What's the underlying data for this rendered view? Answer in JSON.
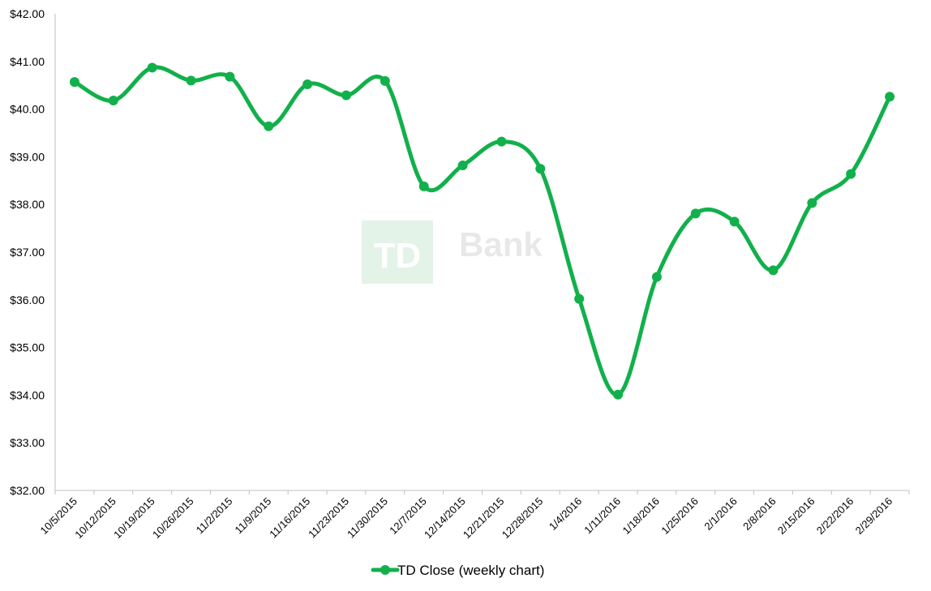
{
  "chart_data": {
    "type": "line",
    "title": "",
    "xlabel": "",
    "ylabel": "",
    "ylim": [
      32,
      42
    ],
    "y_ticks": [
      "$32.00",
      "$33.00",
      "$34.00",
      "$35.00",
      "$36.00",
      "$37.00",
      "$38.00",
      "$39.00",
      "$40.00",
      "$41.00",
      "$42.00"
    ],
    "grid": false,
    "legend_position": "bottom",
    "categories": [
      "10/5/2015",
      "10/12/2015",
      "10/19/2015",
      "10/26/2015",
      "11/2/2015",
      "11/9/2015",
      "11/16/2015",
      "11/23/2015",
      "11/30/2015",
      "12/7/2015",
      "12/14/2015",
      "12/21/2015",
      "12/28/2015",
      "1/4/2016",
      "1/11/2016",
      "1/18/2016",
      "1/25/2016",
      "2/1/2016",
      "2/8/2016",
      "2/15/2016",
      "2/22/2016",
      "2/29/2016"
    ],
    "series": [
      {
        "name": "TD Close (weekly chart)",
        "color": "#12b04b",
        "values": [
          40.57,
          40.18,
          40.87,
          40.6,
          40.68,
          39.64,
          40.52,
          40.29,
          40.59,
          38.38,
          38.82,
          39.32,
          38.75,
          36.02,
          34.01,
          36.48,
          37.81,
          37.64,
          36.62,
          38.03,
          38.64,
          40.26
        ]
      }
    ]
  },
  "watermark": {
    "logo_text": "TD",
    "brand_text": "Bank",
    "logo_color": "#34a853"
  }
}
